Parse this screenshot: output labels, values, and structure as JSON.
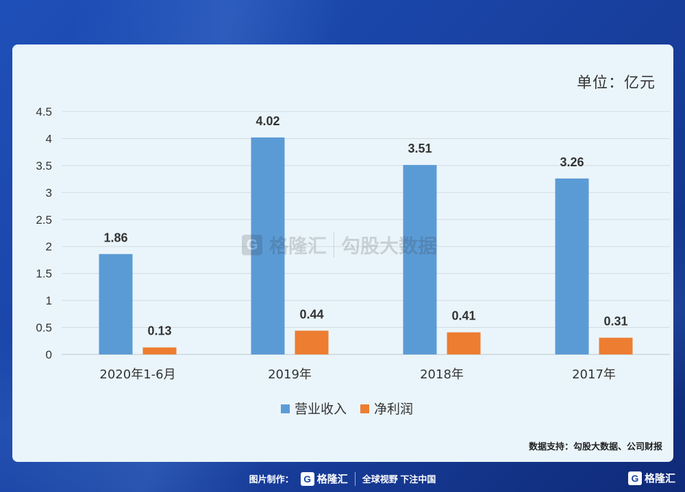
{
  "unit_label": "单位：亿元",
  "source_label": "数据支持：勾股大数据、公司财报",
  "watermark": {
    "brand": "格隆汇",
    "text": "勾股大数据"
  },
  "footer": {
    "made_by": "图片制作：",
    "brand": "格隆汇",
    "slogan": "全球视野 下注中国"
  },
  "corner_brand": "格隆汇",
  "chart_data": {
    "type": "bar",
    "categories": [
      "2020年1-6月",
      "2019年",
      "2018年",
      "2017年"
    ],
    "series": [
      {
        "name": "营业收入",
        "color": "#5b9bd5",
        "values": [
          1.86,
          4.02,
          3.51,
          3.26
        ],
        "labels": [
          "1.86",
          "4.02",
          "3.51",
          "3.26"
        ]
      },
      {
        "name": "净利润",
        "color": "#ed7d31",
        "values": [
          0.13,
          0.44,
          0.41,
          0.31
        ],
        "labels": [
          "0.13",
          "0.44",
          "0.41",
          "0.31"
        ]
      }
    ],
    "ylim": [
      0,
      4.5
    ],
    "yticks": [
      "0",
      "0.5",
      "1",
      "1.5",
      "2",
      "2.5",
      "3",
      "3.5",
      "4",
      "4.5"
    ],
    "grid": true,
    "legend_position": "bottom"
  }
}
